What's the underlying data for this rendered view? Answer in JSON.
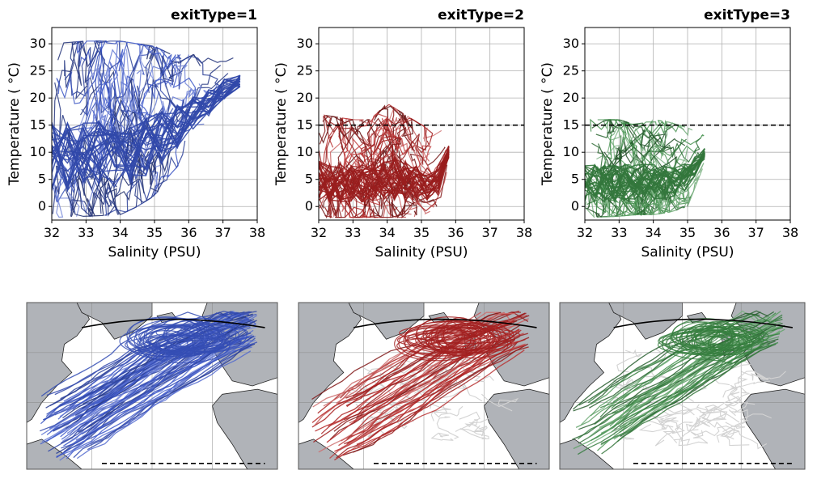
{
  "colors": {
    "exitType1": "#3a55c8",
    "exitType2": "#b42323",
    "exitType3": "#3c8c46",
    "other_tracks": "#d3d3d3",
    "land": "#b0b3b8",
    "grid": "#b0b0b0"
  },
  "chart_data": [
    {
      "type": "line",
      "title": "exitType=1",
      "xlabel": "Salinity (PSU)",
      "ylabel": "Temperature ( °C)",
      "xlim": [
        32,
        38
      ],
      "ylim": [
        -2.5,
        33
      ],
      "xticks": [
        "32",
        "33",
        "34",
        "35",
        "36",
        "37",
        "38"
      ],
      "yticks": [
        "0",
        "5",
        "10",
        "15",
        "20",
        "25",
        "30"
      ],
      "grid": true,
      "series_color": "#3a55c8",
      "x": [
        32.0,
        33.0,
        34.0,
        34.5,
        35.0,
        35.5,
        36.0,
        36.5,
        37.0,
        37.5
      ],
      "y_lower": [
        -2.0,
        -1.8,
        -1.5,
        0.0,
        2.0,
        6.0,
        10.0,
        14.0,
        18.0,
        21.0
      ],
      "y_upper": [
        30.0,
        30.5,
        30.5,
        30.0,
        29.5,
        28.0,
        28.0,
        28.0,
        28.0,
        27.0
      ]
    },
    {
      "type": "line",
      "title": "exitType=2",
      "xlabel": "Salinity (PSU)",
      "ylabel": "Temperature ( °C)",
      "xlim": [
        32,
        38
      ],
      "ylim": [
        -2.5,
        33
      ],
      "xticks": [
        "32",
        "33",
        "34",
        "35",
        "36",
        "37",
        "38"
      ],
      "yticks": [
        "0",
        "5",
        "10",
        "15",
        "20",
        "25",
        "30"
      ],
      "grid": true,
      "reference_line_y": 15,
      "series_color": "#b42323",
      "x": [
        32.0,
        33.0,
        33.5,
        34.0,
        34.5,
        35.0,
        35.5,
        35.8
      ],
      "y_lower": [
        -2.0,
        -2.0,
        -2.0,
        -2.0,
        -2.0,
        -1.8,
        0.0,
        8.0
      ],
      "y_upper": [
        17.0,
        16.0,
        16.0,
        19.0,
        17.0,
        15.0,
        14.0,
        14.0
      ]
    },
    {
      "type": "line",
      "title": "exitType=3",
      "xlabel": "Salinity (PSU)",
      "ylabel": "Temperature ( °C)",
      "xlim": [
        32,
        38
      ],
      "ylim": [
        -2.5,
        33
      ],
      "xticks": [
        "32",
        "33",
        "34",
        "35",
        "36",
        "37",
        "38"
      ],
      "yticks": [
        "0",
        "5",
        "10",
        "15",
        "20",
        "25",
        "30"
      ],
      "grid": true,
      "reference_line_y": 15,
      "series_color": "#3c8c46",
      "x": [
        32.0,
        33.0,
        33.5,
        34.0,
        34.5,
        35.0,
        35.5
      ],
      "y_lower": [
        -2.0,
        -1.8,
        -1.5,
        -1.5,
        -1.0,
        0.0,
        8.0
      ],
      "y_upper": [
        16.0,
        16.0,
        15.0,
        16.0,
        15.5,
        14.5,
        13.0
      ]
    }
  ],
  "maps": [
    {
      "name": "map-exittype-1",
      "color": "#3a55c8",
      "show_gray_tracks": false
    },
    {
      "name": "map-exittype-2",
      "color": "#b42323",
      "show_gray_tracks": true
    },
    {
      "name": "map-exittype-3",
      "color": "#3c8c46",
      "show_gray_tracks": true
    }
  ]
}
